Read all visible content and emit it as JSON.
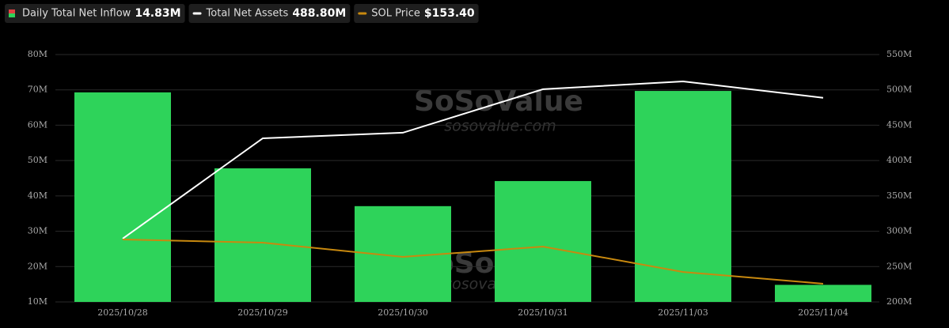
{
  "chart_data": {
    "type": "bar-line",
    "categories": [
      "2025/10/28",
      "2025/10/29",
      "2025/10/30",
      "2025/10/31",
      "2025/11/03",
      "2025/11/04"
    ],
    "series": [
      {
        "name": "Daily Total Net Inflow",
        "type": "bar",
        "color": "#2ed35a",
        "values": [
          69.3,
          47.8,
          37.1,
          44.2,
          69.7,
          14.83
        ],
        "value_labels": [
          null,
          null,
          null,
          null,
          null,
          "14.83M"
        ]
      },
      {
        "name": "Total Net Assets",
        "type": "line",
        "axis": "y2",
        "color": "#ffffff",
        "values": [
          289.5,
          431.5,
          439.4,
          500.9,
          512.0,
          488.8
        ],
        "value_labels": [
          null,
          null,
          null,
          null,
          null,
          "488.80M"
        ]
      },
      {
        "name": "SOL Price",
        "type": "line",
        "axis": "y3",
        "color": "#c8890f",
        "values": [
          200.0,
          196.7,
          181.7,
          192.5,
          165.8,
          153.4
        ],
        "value_labels": [
          null,
          null,
          null,
          null,
          null,
          "$153.40"
        ]
      }
    ],
    "ylim": [
      10,
      80
    ],
    "yticks": [
      {
        "value": 10,
        "label": "10M"
      },
      {
        "value": 20,
        "label": "20M"
      },
      {
        "value": 30,
        "label": "30M"
      },
      {
        "value": 40,
        "label": "40M"
      },
      {
        "value": 50,
        "label": "50M"
      },
      {
        "value": 60,
        "label": "60M"
      },
      {
        "value": 70,
        "label": "70M"
      },
      {
        "value": 80,
        "label": "80M"
      }
    ],
    "y2lim": [
      200,
      550
    ],
    "y2ticks": [
      {
        "value": 200,
        "label": "200M"
      },
      {
        "value": 250,
        "label": "250M"
      },
      {
        "value": 300,
        "label": "300M"
      },
      {
        "value": 350,
        "label": "350M"
      },
      {
        "value": 400,
        "label": "400M"
      },
      {
        "value": 450,
        "label": "450M"
      },
      {
        "value": 500,
        "label": "500M"
      },
      {
        "value": 550,
        "label": "550M"
      }
    ],
    "y3lim": [
      134.2,
      395
    ],
    "grid": true,
    "watermark": {
      "name": "SoSoValue",
      "url": "sosovalue.com"
    }
  }
}
